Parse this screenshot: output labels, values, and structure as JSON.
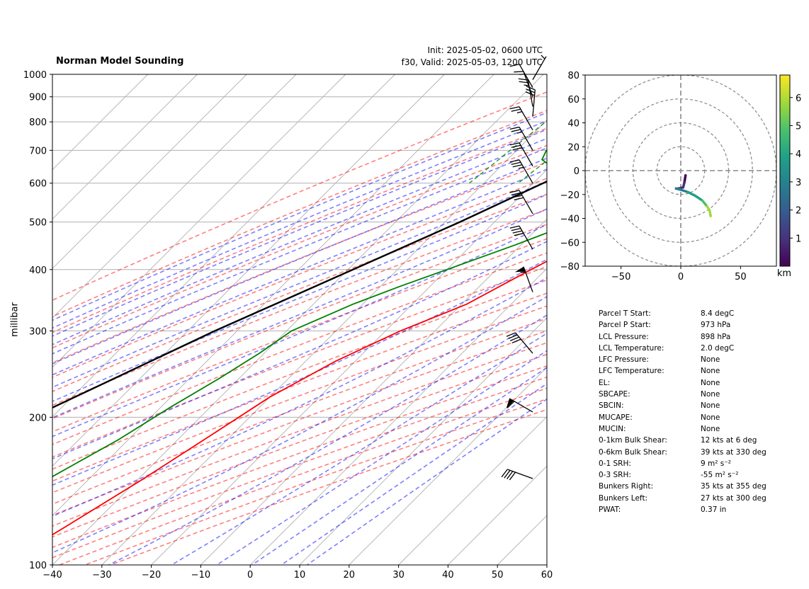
{
  "header": {
    "title": "Norman Model Sounding",
    "init": "Init: 2025-05-02, 0600 UTC",
    "valid": "f30, Valid: 2025-05-03, 1200 UTC"
  },
  "chart_data": [
    {
      "type": "line",
      "subtype": "skew-t log-p",
      "ylabel": "millibar",
      "xlim": [
        -40,
        60
      ],
      "ylim_hpa": [
        1000,
        100
      ],
      "yscale": "log",
      "grid": true,
      "x_ticks": [
        -40,
        -30,
        -20,
        -10,
        0,
        10,
        20,
        30,
        40,
        50,
        60
      ],
      "y_ticks": [
        1000,
        900,
        800,
        700,
        600,
        500,
        400,
        300,
        200,
        100
      ],
      "series": [
        {
          "role": "temperature",
          "color": "#ff0000",
          "points": [
            [
              973,
              8.4
            ],
            [
              940,
              11.5
            ],
            [
              900,
              11.0
            ],
            [
              850,
              10.5
            ],
            [
              800,
              11.0
            ],
            [
              700,
              12.5
            ],
            [
              600,
              11.0
            ],
            [
              500,
              6.0
            ],
            [
              400,
              -3.0
            ],
            [
              340,
              -9.0
            ],
            [
              300,
              -17.0
            ],
            [
              260,
              -24.0
            ],
            [
              220,
              -30.0
            ],
            [
              185,
              -34.0
            ],
            [
              150,
              -39.0
            ],
            [
              120,
              -45.0
            ],
            [
              100,
              -50.0
            ]
          ]
        },
        {
          "role": "dewpoint",
          "color": "#008000",
          "points": [
            [
              973,
              4.0
            ],
            [
              960,
              6.2
            ],
            [
              940,
              6.5
            ],
            [
              920,
              4.0
            ],
            [
              880,
              1.5
            ],
            [
              850,
              0.5
            ],
            [
              820,
              -2.0
            ],
            [
              760,
              -14.0
            ],
            [
              700,
              -24.0
            ],
            [
              670,
              -23.0
            ],
            [
              620,
              -15.0
            ],
            [
              580,
              -8.0
            ],
            [
              520,
              -4.0
            ],
            [
              480,
              -6.5
            ],
            [
              450,
              -11.0
            ],
            [
              400,
              -20.0
            ],
            [
              370,
              -26.0
            ],
            [
              340,
              -32.0
            ],
            [
              300,
              -39.0
            ],
            [
              270,
              -41.0
            ],
            [
              240,
              -44.0
            ],
            [
              210,
              -48.0
            ],
            [
              180,
              -52.0
            ],
            [
              160,
              -56.0
            ],
            [
              130,
              -63.0
            ],
            [
              100,
              -65.0
            ]
          ]
        },
        {
          "role": "parcel",
          "color": "#000000",
          "points": [
            [
              973,
              8.4
            ],
            [
              898,
              2.0
            ],
            [
              800,
              -4.0
            ],
            [
              700,
              -10.5
            ],
            [
              600,
              -18.0
            ],
            [
              500,
              -27.0
            ],
            [
              400,
              -39.0
            ],
            [
              300,
              -54.5
            ],
            [
              200,
              -74.0
            ],
            [
              150,
              -86.0
            ],
            [
              100,
              -100.0
            ]
          ]
        }
      ],
      "wind_barbs": [
        {
          "p": 975,
          "dir": 30,
          "kt": 5
        },
        {
          "p": 940,
          "dir": 330,
          "kt": 10
        },
        {
          "p": 900,
          "dir": 340,
          "kt": 15
        },
        {
          "p": 860,
          "dir": 350,
          "kt": 25
        },
        {
          "p": 820,
          "dir": 5,
          "kt": 30
        },
        {
          "p": 770,
          "dir": 330,
          "kt": 25
        },
        {
          "p": 700,
          "dir": 330,
          "kt": 25
        },
        {
          "p": 650,
          "dir": 330,
          "kt": 30
        },
        {
          "p": 600,
          "dir": 330,
          "kt": 35
        },
        {
          "p": 520,
          "dir": 330,
          "kt": 40
        },
        {
          "p": 440,
          "dir": 330,
          "kt": 40
        },
        {
          "p": 360,
          "dir": 340,
          "kt": 55
        },
        {
          "p": 270,
          "dir": 320,
          "kt": 40
        },
        {
          "p": 205,
          "dir": 300,
          "kt": 60
        },
        {
          "p": 150,
          "dir": 290,
          "kt": 40
        }
      ]
    },
    {
      "type": "line",
      "subtype": "hodograph",
      "xlim": [
        -80,
        80
      ],
      "ylim": [
        -80,
        80
      ],
      "x_ticks": [
        -50,
        0,
        50
      ],
      "y_ticks": [
        80,
        60,
        40,
        20,
        0,
        -20,
        -40,
        -60,
        -80
      ],
      "rings": [
        20,
        40,
        60,
        80
      ],
      "colorbar": {
        "label": "km",
        "ticks": [
          1,
          2,
          3,
          4,
          5,
          6
        ],
        "range": [
          0,
          6.8
        ],
        "colormap": "viridis"
      },
      "trace": [
        [
          4,
          -4
        ],
        [
          3,
          -10
        ],
        [
          2,
          -14
        ],
        [
          -2,
          -15
        ],
        [
          -4,
          -15
        ],
        [
          0,
          -16
        ],
        [
          6,
          -18
        ],
        [
          12,
          -21
        ],
        [
          18,
          -25
        ],
        [
          22,
          -30
        ],
        [
          24,
          -33
        ],
        [
          25,
          -38
        ]
      ]
    }
  ],
  "parameters": [
    {
      "label": "Parcel T Start:",
      "value": "8.4 degC"
    },
    {
      "label": "Parcel P Start:",
      "value": "973 hPa"
    },
    {
      "label": "LCL Pressure:",
      "value": "898 hPa"
    },
    {
      "label": "LCL Temperature:",
      "value": "2.0 degC"
    },
    {
      "label": "LFC Pressure:",
      "value": "None"
    },
    {
      "label": "LFC Temperature:",
      "value": "None"
    },
    {
      "label": "EL:",
      "value": "None"
    },
    {
      "label": "SBCAPE:",
      "value": "None"
    },
    {
      "label": "SBCIN:",
      "value": "None"
    },
    {
      "label": "MUCAPE:",
      "value": "None"
    },
    {
      "label": "MUCIN:",
      "value": "None"
    },
    {
      "label": "0-1km Bulk Shear:",
      "value": "12 kts at 6 deg"
    },
    {
      "label": "0-6km Bulk Shear:",
      "value": "39 kts at 330 deg"
    },
    {
      "label": "0-1 SRH:",
      "value": "9 m² s⁻²"
    },
    {
      "label": "0-3 SRH:",
      "value": "-55 m² s⁻²"
    },
    {
      "label": "Bunkers Right:",
      "value": "35 kts at 355 deg"
    },
    {
      "label": "Bunkers Left:",
      "value": "27 kts at 300 deg"
    },
    {
      "label": "PWAT:",
      "value": "0.37 in"
    }
  ]
}
